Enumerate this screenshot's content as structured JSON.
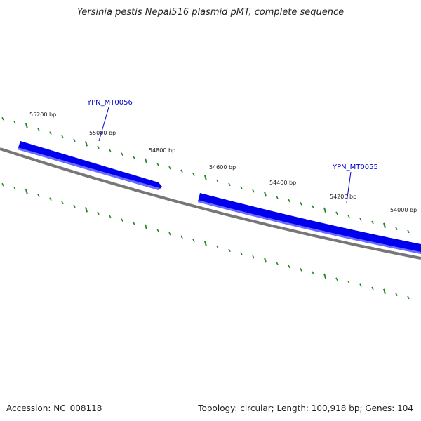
{
  "title": "Yersinia pestis Nepal516 plasmid pMT, complete sequence",
  "footer": {
    "accession_text": "Accession: NC_008118",
    "stats_text": "Topology: circular; Length: 100,918 bp; Genes: 104"
  },
  "ruler": {
    "labels": [
      "55200 bp",
      "55000 bp",
      "54800 bp",
      "54600 bp",
      "54400 bp",
      "54200 bp",
      "54000 bp"
    ]
  },
  "genes": [
    {
      "name": "YPN_MT0056",
      "strand": "forward"
    },
    {
      "name": "YPN_MT0055",
      "strand": "forward"
    }
  ],
  "colors": {
    "gene_fill": "#0000ee",
    "gene_highlight": "#6b6bff",
    "backbone": "#777777",
    "tick": "#228822",
    "label_line": "#0000cc"
  }
}
